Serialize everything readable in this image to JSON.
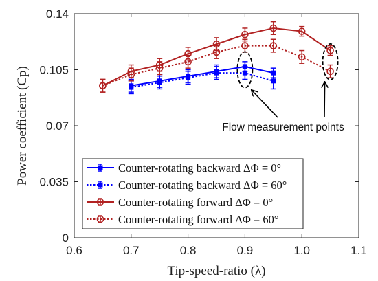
{
  "chart_data": {
    "type": "line",
    "title": "",
    "xlabel": "Tip-speed-ratio (λ)",
    "ylabel": "Power coefficient (Cp)",
    "xlim": [
      0.6,
      1.1
    ],
    "ylim": [
      0,
      0.14
    ],
    "xticks": [
      0.6,
      0.7,
      0.8,
      0.9,
      1.0,
      1.1
    ],
    "xtick_labels": [
      "0.6",
      "0.7",
      "0.8",
      "0.9",
      "1.0",
      "1.1"
    ],
    "yticks": [
      0,
      0.035,
      0.07,
      0.105,
      0.14
    ],
    "ytick_labels": [
      "0",
      "0.035",
      "0.07",
      "0.105",
      "0.14"
    ],
    "grid": false,
    "legend_position": "bottom-left",
    "series": [
      {
        "name": "Counter-rotating backward ΔΦ = 0°",
        "color": "#0000ff",
        "line_style": "solid",
        "marker": "filled-square",
        "x": [
          0.7,
          0.75,
          0.8,
          0.85,
          0.9,
          0.95
        ],
        "y": [
          0.095,
          0.098,
          0.101,
          0.104,
          0.107,
          0.103
        ],
        "err": [
          0.004,
          0.004,
          0.004,
          0.004,
          0.003,
          0.003
        ]
      },
      {
        "name": "Counter-rotating backward ΔΦ = 60°",
        "color": "#0000ff",
        "line_style": "dotted",
        "marker": "filled-square",
        "x": [
          0.7,
          0.75,
          0.8,
          0.85,
          0.9,
          0.95
        ],
        "y": [
          0.094,
          0.097,
          0.1,
          0.103,
          0.103,
          0.098
        ],
        "err": [
          0.004,
          0.004,
          0.004,
          0.004,
          0.004,
          0.005
        ]
      },
      {
        "name": "Counter-rotating forward ΔΦ = 0°",
        "color": "#b22222",
        "line_style": "solid",
        "marker": "open-circle",
        "x": [
          0.65,
          0.7,
          0.75,
          0.8,
          0.85,
          0.9,
          0.95,
          1.0,
          1.05
        ],
        "y": [
          0.095,
          0.104,
          0.108,
          0.115,
          0.121,
          0.127,
          0.131,
          0.129,
          0.117
        ],
        "err": [
          0.004,
          0.004,
          0.004,
          0.004,
          0.004,
          0.004,
          0.004,
          0.003,
          0.003
        ]
      },
      {
        "name": "Counter-rotating forward ΔΦ = 60°",
        "color": "#b22222",
        "line_style": "dotted",
        "marker": "open-circle",
        "x": [
          0.65,
          0.7,
          0.75,
          0.8,
          0.85,
          0.9,
          0.95,
          1.0,
          1.05
        ],
        "y": [
          0.095,
          0.102,
          0.106,
          0.11,
          0.116,
          0.12,
          0.12,
          0.113,
          0.104
        ],
        "err": [
          0.004,
          0.004,
          0.004,
          0.004,
          0.004,
          0.004,
          0.004,
          0.004,
          0.004
        ]
      }
    ],
    "annotations": [
      {
        "text": "Flow measurement points",
        "highlight_points": [
          {
            "x": 0.9,
            "y": 0.105
          },
          {
            "x": 1.05,
            "y": 0.11
          }
        ]
      }
    ]
  }
}
